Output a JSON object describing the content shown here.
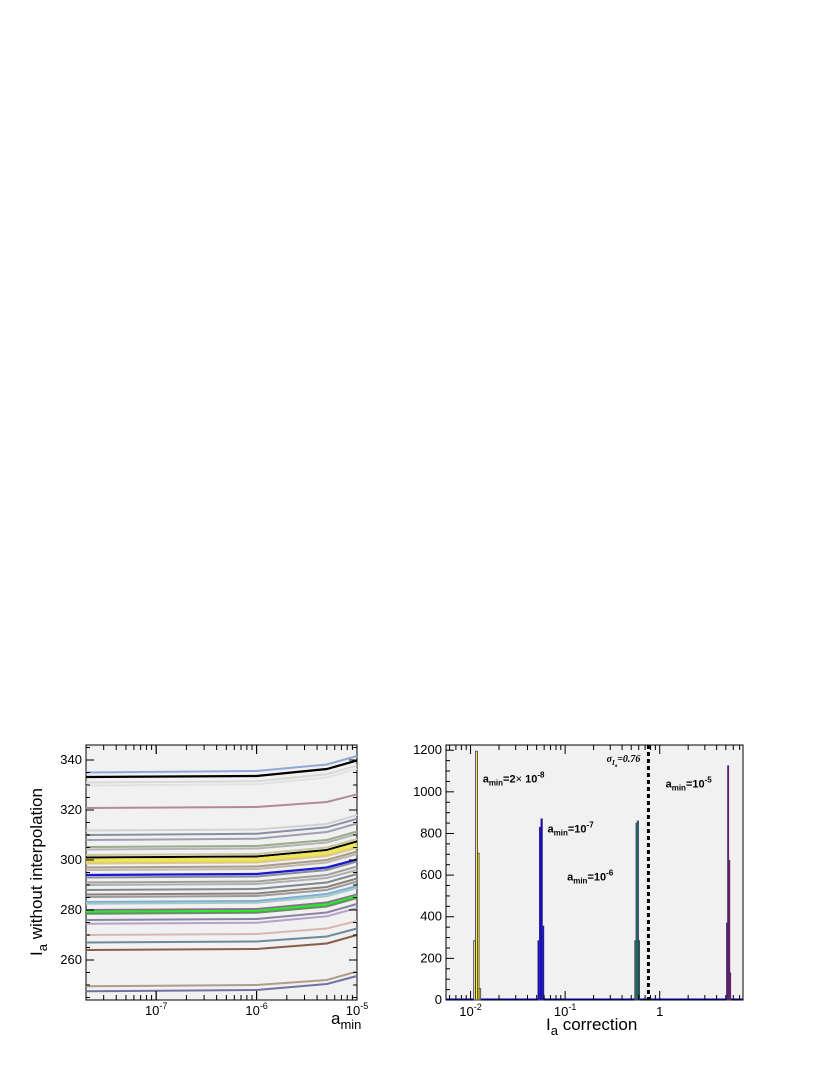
{
  "chart_data": [
    {
      "type": "line",
      "xscale": "log",
      "xlim": [
        2e-08,
        1e-05
      ],
      "ylim": [
        244,
        346
      ],
      "xlabel": "a",
      "xlabel_sub": "min",
      "ylabel": "I",
      "ylabel_sub": "a",
      "ylabel_rest": " without interpolation",
      "x_ticks": [
        {
          "value": 1e-07,
          "base": "10",
          "exp": "-7"
        },
        {
          "value": 1e-06,
          "base": "10",
          "exp": "-6"
        },
        {
          "value": 1e-05,
          "base": "10",
          "exp": "-5"
        }
      ],
      "y_ticks": [
        260,
        280,
        300,
        320,
        340
      ],
      "x": [
        2e-08,
        1e-06,
        5e-06,
        1e-05
      ],
      "series": [
        {
          "values": [
            335.0,
            335.6,
            338.2,
            341.6
          ],
          "color": "#8ea8d8"
        },
        {
          "values": [
            333.2,
            333.6,
            336.4,
            339.8
          ],
          "color": "#000000",
          "width": 2.2
        },
        {
          "values": [
            331.0,
            331.5,
            334.3,
            337.8
          ],
          "color": "#d8d8d8"
        },
        {
          "values": [
            329.8,
            330.3,
            333.0,
            336.5
          ],
          "color": "#e2e2e2"
        },
        {
          "values": [
            320.8,
            321.2,
            323.2,
            326.3
          ],
          "color": "#b08b96"
        },
        {
          "values": [
            311.8,
            312.2,
            314.4,
            318.0
          ],
          "color": "#d2d2d2"
        },
        {
          "values": [
            310.0,
            310.5,
            313.1,
            316.5
          ],
          "color": "#8a8ea2"
        },
        {
          "values": [
            308.0,
            308.5,
            311.2,
            314.6
          ],
          "color": "#a0a0b0"
        },
        {
          "values": [
            305.2,
            305.6,
            308.0,
            311.4
          ],
          "color": "#9aab8e"
        },
        {
          "values": [
            304.2,
            304.6,
            307.0,
            310.4
          ],
          "color": "#b4b4b4"
        },
        {
          "values": [
            302.0,
            302.4,
            305.0,
            308.4
          ],
          "color": "#c8c89a"
        },
        {
          "values": [
            301.0,
            301.4,
            304.0,
            307.4
          ],
          "color": "#000000",
          "width": 2.0
        },
        {
          "values": [
            300.2,
            300.6,
            303.2,
            306.6
          ],
          "color": "#ebe35a"
        },
        {
          "values": [
            299.3,
            299.7,
            302.3,
            305.6
          ],
          "color": "#f0e040"
        },
        {
          "values": [
            298.6,
            299.0,
            301.6,
            304.9
          ],
          "color": "#d9c890"
        },
        {
          "values": [
            297.0,
            297.4,
            300.0,
            303.4
          ],
          "color": "#a69a8e"
        },
        {
          "values": [
            296.0,
            296.4,
            299.0,
            302.4
          ],
          "color": "#c2b6a8"
        },
        {
          "values": [
            294.0,
            294.4,
            297.0,
            300.2
          ],
          "color": "#1818d0",
          "width": 2.2
        },
        {
          "values": [
            293.0,
            293.4,
            296.0,
            299.4
          ],
          "color": "#8c8c9a"
        },
        {
          "values": [
            291.0,
            291.4,
            294.0,
            297.4
          ],
          "color": "#9ea09a"
        },
        {
          "values": [
            290.0,
            290.4,
            292.8,
            296.0
          ],
          "color": "#b0b0b0"
        },
        {
          "values": [
            288.0,
            288.4,
            291.0,
            294.4
          ],
          "color": "#7e8a8e"
        },
        {
          "values": [
            286.2,
            286.6,
            289.2,
            292.6
          ],
          "color": "#8a8278"
        },
        {
          "values": [
            285.2,
            285.6,
            288.0,
            291.4
          ],
          "color": "#9a9a9a"
        },
        {
          "values": [
            283.2,
            283.6,
            286.4,
            289.6
          ],
          "color": "#7ab0d6"
        },
        {
          "values": [
            282.5,
            282.9,
            285.5,
            288.8
          ],
          "color": "#a8c8c8"
        },
        {
          "values": [
            280.0,
            280.4,
            283.0,
            286.2
          ],
          "color": "#8a7090"
        },
        {
          "values": [
            279.2,
            279.6,
            282.2,
            285.6
          ],
          "color": "#22ee22",
          "width": 2.2
        },
        {
          "values": [
            278.5,
            278.9,
            281.4,
            284.8
          ],
          "color": "#6a8a6a"
        },
        {
          "values": [
            276.0,
            276.4,
            279.0,
            282.4
          ],
          "color": "#8a84a2"
        },
        {
          "values": [
            274.5,
            274.9,
            277.5,
            280.8
          ],
          "color": "#b4a2c8"
        },
        {
          "values": [
            270.0,
            270.4,
            272.6,
            275.6
          ],
          "color": "#d8b8ae"
        },
        {
          "values": [
            267.0,
            267.4,
            269.4,
            272.6
          ],
          "color": "#6e8a98"
        },
        {
          "values": [
            264.0,
            264.4,
            266.6,
            270.0
          ],
          "color": "#8a5e4a"
        },
        {
          "values": [
            249.5,
            250.0,
            252.0,
            255.4
          ],
          "color": "#b09c8a"
        },
        {
          "values": [
            247.5,
            248.0,
            250.4,
            253.6
          ],
          "color": "#7272a2"
        }
      ]
    },
    {
      "type": "histogram",
      "xscale": "log",
      "xlim": [
        0.0055,
        7.6
      ],
      "ylim": [
        0,
        1225
      ],
      "xlabel": "I",
      "xlabel_sub": "a",
      "xlabel_rest": " correction",
      "ylabel": "",
      "x_ticks": [
        {
          "value": 0.01,
          "base": "10",
          "exp": "-2"
        },
        {
          "value": 0.1,
          "base": "10",
          "exp": "-1"
        },
        {
          "value": 1,
          "base": "1",
          "exp": ""
        }
      ],
      "y_ticks": [
        0,
        200,
        400,
        600,
        800,
        1000,
        1200
      ],
      "series": [
        {
          "name_parts": [
            "a",
            "min",
            "=2",
            "×",
            " 10",
            "-8"
          ],
          "color": "#ffff00",
          "bins": [
            [
              0.0108,
              0.0113,
              285
            ],
            [
              0.0113,
              0.0118,
              1195
            ],
            [
              0.0118,
              0.0123,
              705
            ],
            [
              0.0123,
              0.0128,
              55
            ]
          ]
        },
        {
          "name_parts": [
            "a",
            "min",
            "=10",
            "-7",
            "",
            ""
          ],
          "color": "#0000ee",
          "bins": [
            [
              0.0515,
              0.0535,
              285
            ],
            [
              0.0535,
              0.0555,
              830
            ],
            [
              0.0555,
              0.0575,
              870
            ],
            [
              0.0575,
              0.0595,
              355
            ]
          ]
        },
        {
          "name_parts": [
            "a",
            "min",
            "=10",
            "-6",
            "",
            ""
          ],
          "color": "#00ee00",
          "bins": [
            [
              0.545,
              0.562,
              285
            ],
            [
              0.562,
              0.579,
              850
            ],
            [
              0.579,
              0.596,
              860
            ],
            [
              0.596,
              0.613,
              285
            ]
          ]
        },
        {
          "name_parts": [
            "a",
            "min",
            "=10",
            "-5",
            "",
            ""
          ],
          "color": "#ee0000",
          "bins": [
            [
              5.08,
              5.22,
              370
            ],
            [
              5.22,
              5.36,
              1125
            ],
            [
              5.36,
              5.5,
              670
            ],
            [
              5.5,
              5.64,
              130
            ]
          ]
        }
      ],
      "vline": {
        "value": 0.76,
        "label": "σ",
        "label_sub": "I",
        "label_subsub": "a",
        "label_rest": "=0.76"
      }
    }
  ]
}
